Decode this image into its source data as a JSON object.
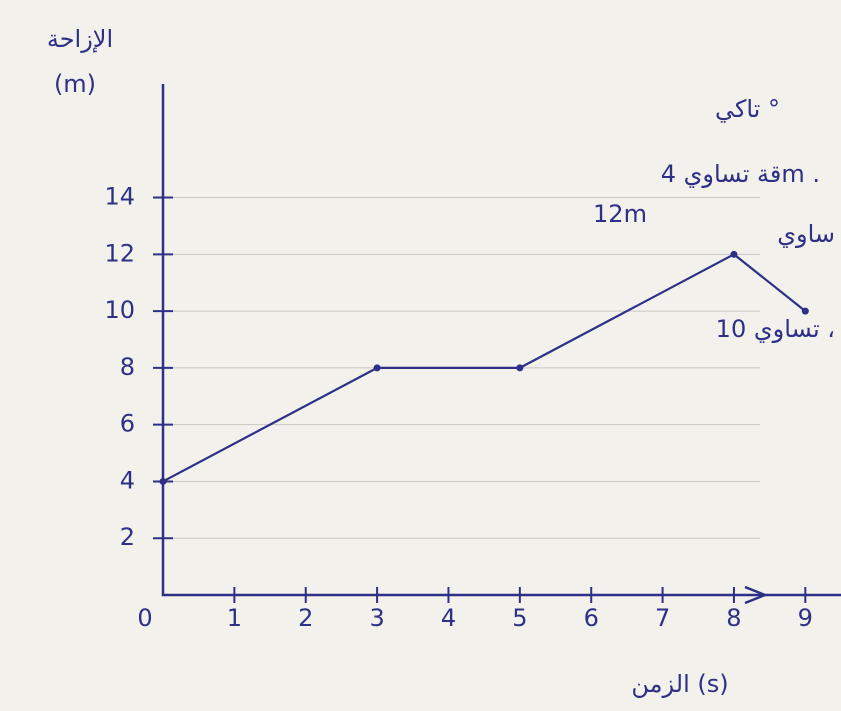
{
  "chart_data": {
    "type": "line",
    "x_label": "الزمن (s)",
    "y_label": "الإزاحة",
    "y_unit": "(m)",
    "x": [
      0,
      3,
      5,
      8,
      9
    ],
    "series": [
      {
        "color": "#2e2f86",
        "values": [
          4,
          8,
          8,
          12,
          10
        ]
      }
    ],
    "xlim": [
      0,
      9.5
    ],
    "xticks": [
      0,
      1,
      2,
      3,
      4,
      5,
      6,
      7,
      8,
      9
    ],
    "ylim": [
      0,
      18
    ],
    "yticks": [
      2,
      4,
      6,
      8,
      10,
      12,
      14
    ],
    "grid": true,
    "annotations": [
      "تاكي °",
      "قة تساوي 4m .",
      "12m",
      "ساوي",
      "تساوي 10 ،"
    ]
  }
}
